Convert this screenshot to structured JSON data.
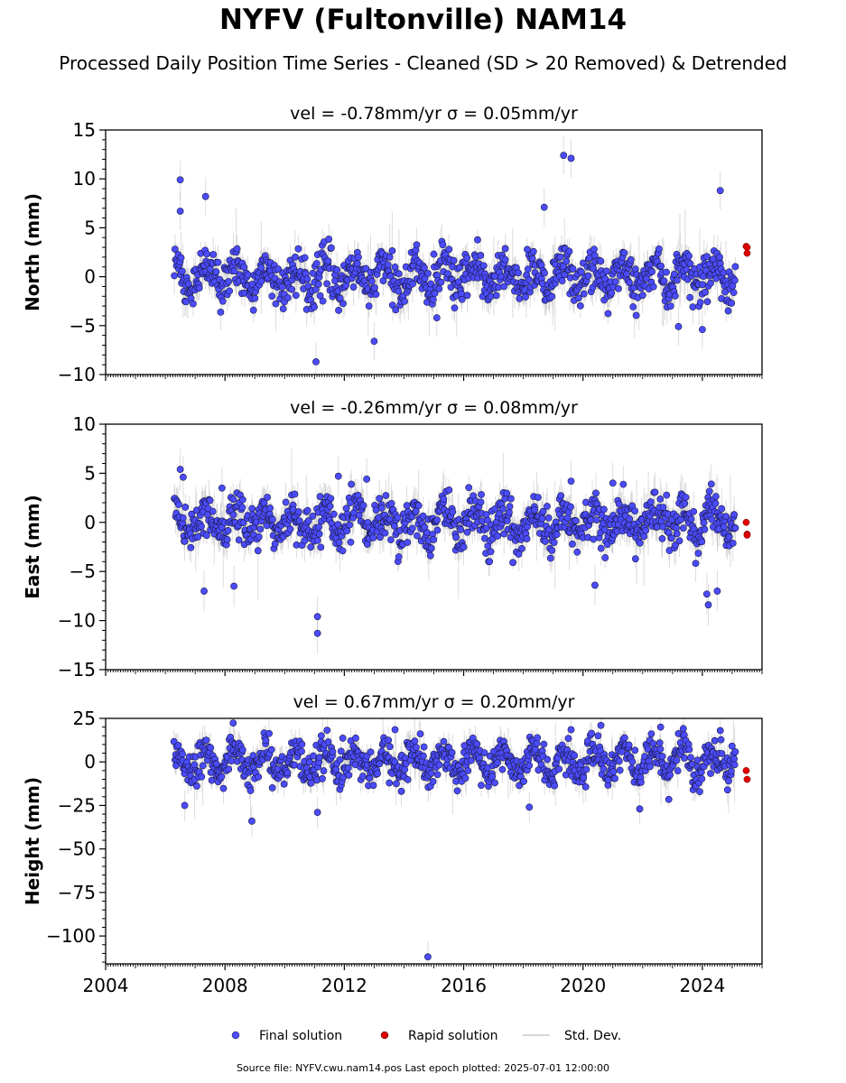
{
  "figure": {
    "title": "NYFV (Fultonville) NAM14",
    "subtitle": "Processed Daily Position Time Series - Cleaned (SD > 20 Removed) & Detrended",
    "source_note": "Source file: NYFV.cwu.nam14.pos  Last epoch plotted: 2025-07-01 12:00:00"
  },
  "colors": {
    "final": "#4b4bff",
    "final_edge": "#1a1a40",
    "rapid": "#e00000",
    "std_dev": "#9a9a9a"
  },
  "legend": {
    "placement": "bottom-center",
    "entries": [
      {
        "label": "Final solution",
        "marker": "dot",
        "color": "#4b4bff"
      },
      {
        "label": "Rapid solution",
        "marker": "dot",
        "color": "#e00000"
      },
      {
        "label": "Std. Dev.",
        "marker": "line",
        "color": "#cccccc"
      }
    ]
  },
  "chart_data": [
    {
      "type": "scatter",
      "title": "vel = -0.78mm/yr   σ = 0.05mm/yr",
      "ylabel": "North (mm)",
      "xlim": [
        2004,
        2026
      ],
      "ylim": [
        -10,
        15
      ],
      "yticks": [
        15,
        10,
        5,
        0,
        -5,
        -10
      ],
      "ytick_labels": [
        "15",
        "10",
        "5",
        "0",
        "−5",
        "−10"
      ],
      "grid": false,
      "final_solution": {
        "x_range": [
          2006.3,
          2025.1
        ],
        "amplitude": 1.3,
        "noise": 1.1,
        "sigma": 1.3,
        "outliers": [
          {
            "x": 2006.5,
            "y": 9.9
          },
          {
            "x": 2006.5,
            "y": 6.7
          },
          {
            "x": 2007.35,
            "y": 8.2
          },
          {
            "x": 2011.05,
            "y": -8.7
          },
          {
            "x": 2013.0,
            "y": -6.6
          },
          {
            "x": 2019.35,
            "y": 12.4
          },
          {
            "x": 2019.6,
            "y": 12.1
          },
          {
            "x": 2024.6,
            "y": 8.8
          },
          {
            "x": 2023.2,
            "y": -5.1
          },
          {
            "x": 2024.0,
            "y": -5.4
          },
          {
            "x": 2015.1,
            "y": -4.2
          },
          {
            "x": 2018.7,
            "y": 7.1
          }
        ]
      },
      "rapid_solution": [
        {
          "x": 2025.47,
          "y": 3.1
        },
        {
          "x": 2025.5,
          "y": 2.4
        },
        {
          "x": 2025.5,
          "y": 3.0
        }
      ]
    },
    {
      "type": "scatter",
      "title": "vel = -0.26mm/yr   σ = 0.08mm/yr",
      "ylabel": "East (mm)",
      "xlim": [
        2004,
        2026
      ],
      "ylim": [
        -15,
        10
      ],
      "yticks": [
        10,
        5,
        0,
        -5,
        -10,
        -15
      ],
      "ytick_labels": [
        "10",
        "5",
        "0",
        "−5",
        "−10",
        "−15"
      ],
      "grid": false,
      "final_solution": {
        "x_range": [
          2006.3,
          2025.1
        ],
        "amplitude": 1.2,
        "noise": 1.1,
        "sigma": 1.4,
        "outliers": [
          {
            "x": 2006.5,
            "y": 5.4
          },
          {
            "x": 2006.6,
            "y": 4.6
          },
          {
            "x": 2007.3,
            "y": -7.0
          },
          {
            "x": 2007.9,
            "y": 3.5
          },
          {
            "x": 2008.3,
            "y": -6.5
          },
          {
            "x": 2011.1,
            "y": -9.6
          },
          {
            "x": 2011.1,
            "y": -11.3
          },
          {
            "x": 2011.8,
            "y": 4.7
          },
          {
            "x": 2012.75,
            "y": 4.4
          },
          {
            "x": 2019.6,
            "y": 4.2
          },
          {
            "x": 2021.0,
            "y": 4.0
          },
          {
            "x": 2024.2,
            "y": -8.4
          },
          {
            "x": 2024.15,
            "y": -7.3
          },
          {
            "x": 2024.5,
            "y": -7.0
          },
          {
            "x": 2024.3,
            "y": 3.9
          },
          {
            "x": 2020.4,
            "y": -6.4
          }
        ]
      },
      "rapid_solution": [
        {
          "x": 2025.47,
          "y": 0.0
        },
        {
          "x": 2025.5,
          "y": -1.2
        },
        {
          "x": 2025.5,
          "y": -1.3
        }
      ]
    },
    {
      "type": "scatter",
      "title": "vel = 0.67mm/yr   σ = 0.20mm/yr",
      "ylabel": "Height (mm)",
      "xlabel": "",
      "xlim": [
        2004,
        2026
      ],
      "ylim": [
        -116,
        25
      ],
      "yticks": [
        25,
        0,
        -25,
        -50,
        -75,
        -100
      ],
      "ytick_labels": [
        "25",
        "0",
        "−25",
        "−50",
        "−75",
        "−100"
      ],
      "xticks": [
        2004,
        2008,
        2012,
        2016,
        2020,
        2024
      ],
      "xtick_labels": [
        "2004",
        "2008",
        "2012",
        "2016",
        "2020",
        "2024"
      ],
      "grid": false,
      "final_solution": {
        "x_range": [
          2006.3,
          2025.1
        ],
        "amplitude": 6.5,
        "noise": 5.0,
        "sigma": 6.0,
        "outliers": [
          {
            "x": 2014.8,
            "y": -112
          },
          {
            "x": 2008.9,
            "y": -34
          },
          {
            "x": 2011.1,
            "y": -29
          },
          {
            "x": 2006.65,
            "y": -25
          },
          {
            "x": 2013.7,
            "y": 18.5
          },
          {
            "x": 2020.6,
            "y": 21.0
          },
          {
            "x": 2022.6,
            "y": 20.0
          },
          {
            "x": 2024.6,
            "y": 18.0
          },
          {
            "x": 2019.6,
            "y": 18.5
          },
          {
            "x": 2018.2,
            "y": -26
          },
          {
            "x": 2021.9,
            "y": -27
          }
        ]
      },
      "rapid_solution": [
        {
          "x": 2025.47,
          "y": -5
        },
        {
          "x": 2025.5,
          "y": -10
        }
      ]
    }
  ]
}
